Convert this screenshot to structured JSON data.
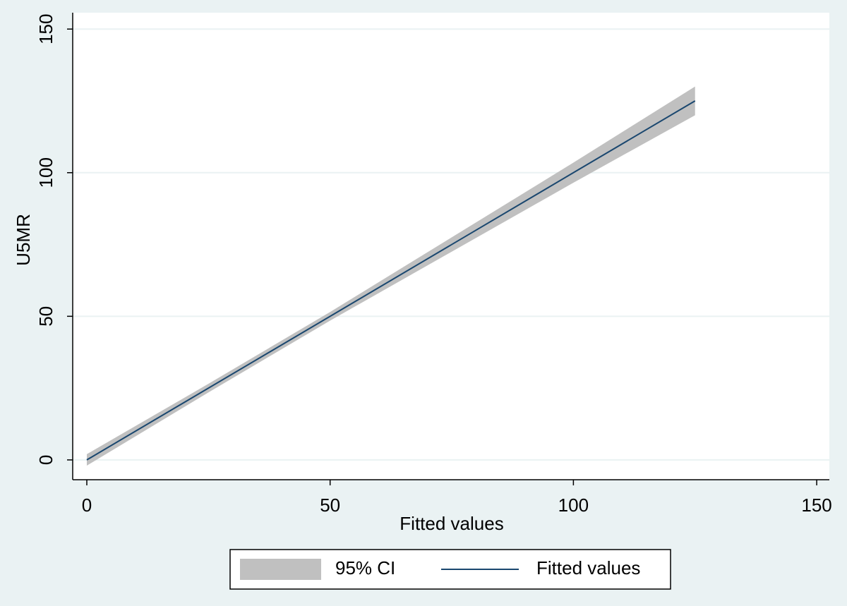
{
  "chart_data": {
    "type": "line",
    "x_label": "Fitted values",
    "y_label": "U5MR",
    "x": [
      0,
      25,
      50,
      75,
      100,
      125
    ],
    "series": [
      {
        "name": "95% CI",
        "color": "#c0c0c0",
        "lower": [
          -2,
          23.5,
          48.5,
          72.5,
          96.5,
          120
        ],
        "upper": [
          2,
          26.5,
          51.5,
          77.5,
          103.5,
          130
        ]
      },
      {
        "name": "Fitted values",
        "color": "#1a476f",
        "values": [
          0,
          25,
          50,
          75,
          100,
          125
        ]
      }
    ],
    "xlim": [
      -2.9,
      152.6
    ],
    "ylim": [
      -6.9,
      155.7
    ],
    "xticks": [
      0,
      50,
      100,
      150
    ],
    "yticks": [
      0,
      50,
      100,
      150
    ],
    "grid": true,
    "legend": "bottom"
  }
}
